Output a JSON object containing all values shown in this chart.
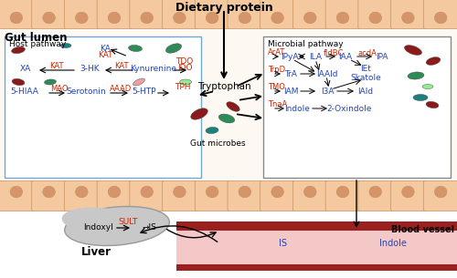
{
  "title": "Dietary protein",
  "gut_lumen_label": "Gut lumen",
  "blood_vessel_label": "Blood vessel",
  "liver_label": "Liver",
  "gut_microbes_label": "Gut microbes",
  "host_pathway_label": "Host pathway",
  "microbial_pathway_label": "Microbial pathway",
  "tryptophan_label": "Tryptophan",
  "blue_color": "#2244bb",
  "red_color": "#cc2200",
  "black_color": "#111111",
  "cell_fill": "#f5c9a0",
  "cell_edge": "#c8905a",
  "nucleus_fill": "#d4956a",
  "gut_bg": "#f7d5b0",
  "inner_bg": "#fef8f2",
  "box_bg": "#ffffff",
  "host_box_edge": "#70a8d0",
  "mic_box_edge": "#888888",
  "blood_dark": "#9b2020",
  "blood_light": "#f5c8c8",
  "liver_fill": "#c8c8c8",
  "liver_edge": "#999999"
}
